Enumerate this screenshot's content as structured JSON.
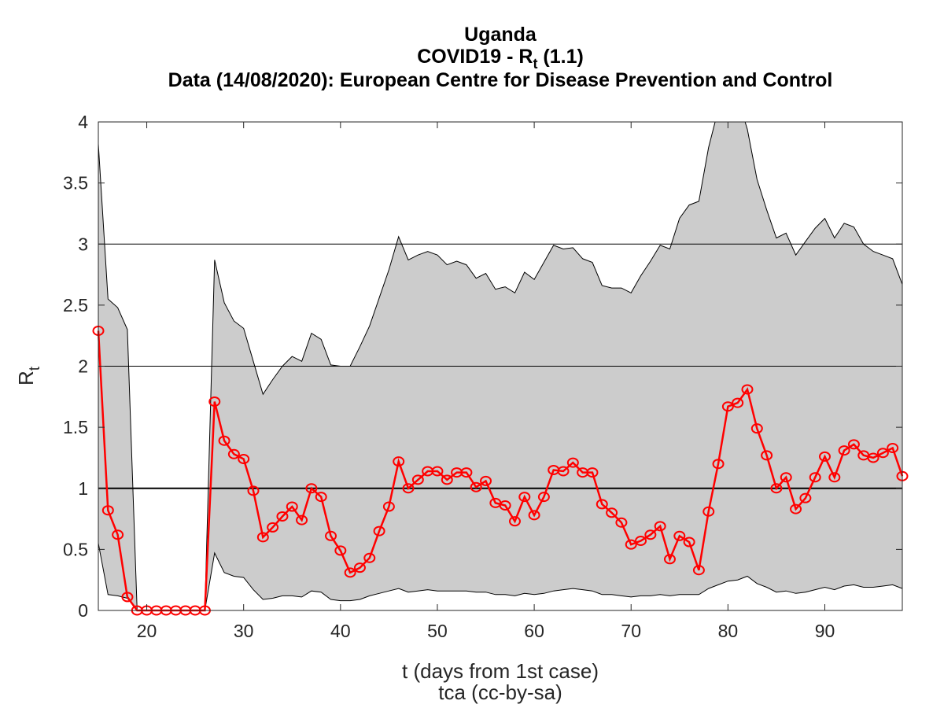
{
  "chart_data": {
    "type": "line",
    "title": [
      "Uganda",
      "COVID19 - R_t (1.1)",
      "Data (14/08/2020): European Centre for Disease Prevention and Control"
    ],
    "title_parts": {
      "line1": "Uganda",
      "line2_pre": "COVID19 - R",
      "line2_sub": "t",
      "line2_post": " (1.1)",
      "line3": "Data (14/08/2020): European Centre for Disease Prevention and Control"
    },
    "xlabel": "t (days from 1st case)",
    "footer": "tca (cc-by-sa)",
    "ylabel": {
      "main": "R",
      "sub": "t"
    },
    "xlim": [
      15,
      98
    ],
    "ylim": [
      0,
      4
    ],
    "xticks": [
      20,
      30,
      40,
      50,
      60,
      70,
      80,
      90
    ],
    "yticks": [
      0,
      0.5,
      1,
      1.5,
      2,
      2.5,
      3,
      3.5,
      4
    ],
    "ytick_labels": [
      "0",
      "0.5",
      "1",
      "1.5",
      "2",
      "2.5",
      "3",
      "3.5",
      "4"
    ],
    "hlines": [
      1,
      2,
      3
    ],
    "grid": false,
    "x_start": 15,
    "series": [
      {
        "name": "Rt",
        "color": "#ff0000",
        "marker": "circle",
        "values": [
          2.29,
          0.82,
          0.62,
          0.11,
          0,
          0,
          0,
          0,
          0,
          0,
          0,
          0,
          1.71,
          1.39,
          1.28,
          1.24,
          0.98,
          0.6,
          0.68,
          0.77,
          0.85,
          0.74,
          1.0,
          0.93,
          0.61,
          0.49,
          0.31,
          0.35,
          0.43,
          0.65,
          0.85,
          1.22,
          1.0,
          1.07,
          1.14,
          1.14,
          1.07,
          1.13,
          1.13,
          1.01,
          1.06,
          0.88,
          0.86,
          0.73,
          0.93,
          0.78,
          0.93,
          1.15,
          1.14,
          1.21,
          1.13,
          1.13,
          0.87,
          0.8,
          0.72,
          0.54,
          0.57,
          0.62,
          0.69,
          0.42,
          0.61,
          0.56,
          0.33,
          0.81,
          1.2,
          1.67,
          1.7,
          1.81,
          1.49,
          1.27,
          1.0,
          1.09,
          0.83,
          0.92,
          1.09,
          1.26,
          1.09,
          1.31,
          1.36,
          1.27,
          1.25,
          1.29,
          1.33,
          1.1
        ]
      },
      {
        "name": "upper bound",
        "color": "#000000",
        "values": [
          3.82,
          2.55,
          2.48,
          2.3,
          0,
          0,
          0,
          0,
          0,
          0,
          0,
          0,
          2.87,
          2.52,
          2.37,
          2.31,
          2.04,
          1.77,
          1.89,
          2.0,
          2.08,
          2.04,
          2.27,
          2.22,
          2.01,
          2.0,
          2.0,
          2.16,
          2.33,
          2.56,
          2.79,
          3.06,
          2.87,
          2.91,
          2.94,
          2.91,
          2.83,
          2.86,
          2.83,
          2.72,
          2.76,
          2.63,
          2.65,
          2.6,
          2.77,
          2.71,
          2.85,
          2.99,
          2.96,
          2.97,
          2.88,
          2.85,
          2.66,
          2.64,
          2.64,
          2.6,
          2.74,
          2.86,
          2.99,
          2.96,
          3.21,
          3.32,
          3.35,
          3.79,
          4.1,
          4.4,
          4.2,
          3.94,
          3.53,
          3.28,
          3.05,
          3.09,
          2.91,
          3.02,
          3.13,
          3.21,
          3.05,
          3.17,
          3.14,
          3.0,
          2.94,
          2.91,
          2.88,
          2.67
        ]
      },
      {
        "name": "lower bound",
        "color": "#000000",
        "values": [
          0.55,
          0.13,
          0.12,
          0.1,
          0,
          0,
          0,
          0,
          0,
          0,
          0,
          0,
          0.47,
          0.31,
          0.28,
          0.27,
          0.17,
          0.09,
          0.1,
          0.12,
          0.12,
          0.11,
          0.16,
          0.15,
          0.09,
          0.08,
          0.08,
          0.09,
          0.12,
          0.14,
          0.16,
          0.18,
          0.15,
          0.16,
          0.17,
          0.16,
          0.16,
          0.16,
          0.16,
          0.15,
          0.15,
          0.13,
          0.13,
          0.12,
          0.14,
          0.13,
          0.14,
          0.16,
          0.17,
          0.18,
          0.17,
          0.16,
          0.13,
          0.13,
          0.12,
          0.11,
          0.12,
          0.12,
          0.13,
          0.12,
          0.13,
          0.13,
          0.13,
          0.18,
          0.21,
          0.24,
          0.25,
          0.28,
          0.22,
          0.19,
          0.15,
          0.16,
          0.14,
          0.15,
          0.17,
          0.19,
          0.17,
          0.2,
          0.21,
          0.19,
          0.19,
          0.2,
          0.21,
          0.18
        ]
      }
    ],
    "band_fill": "#cccccc"
  }
}
